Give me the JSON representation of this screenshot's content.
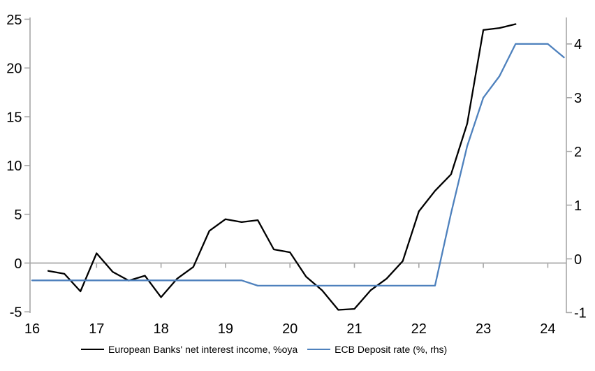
{
  "chart_data": {
    "type": "line",
    "title": "",
    "legend_position": "bottom",
    "x_axis": {
      "ticks": [
        16,
        17,
        18,
        19,
        20,
        21,
        22,
        23,
        24
      ],
      "range": [
        16,
        24.35
      ]
    },
    "left_axis": {
      "ticks": [
        -5,
        0,
        5,
        10,
        15,
        20,
        25
      ],
      "range": [
        -5.2,
        25.2
      ]
    },
    "right_axis": {
      "ticks": [
        -1,
        0,
        1,
        2,
        3,
        4
      ],
      "range": [
        -1.05,
        4.55
      ]
    },
    "colors": {
      "axis": "#a6a6a6",
      "text": "#000000",
      "background": "#ffffff"
    },
    "series": [
      {
        "key": "net-interest-income",
        "name": "European Banks' net interest income, %oya",
        "axis": "left",
        "color": "#000000",
        "points": [
          [
            16.25,
            -0.8
          ],
          [
            16.5,
            -1.1
          ],
          [
            16.75,
            -2.9
          ],
          [
            17.0,
            1.0
          ],
          [
            17.25,
            -0.9
          ],
          [
            17.5,
            -1.8
          ],
          [
            17.75,
            -1.3
          ],
          [
            18.0,
            -3.5
          ],
          [
            18.25,
            -1.6
          ],
          [
            18.5,
            -0.4
          ],
          [
            18.75,
            3.3
          ],
          [
            19.0,
            4.5
          ],
          [
            19.25,
            4.2
          ],
          [
            19.5,
            4.4
          ],
          [
            19.75,
            1.4
          ],
          [
            20.0,
            1.1
          ],
          [
            20.25,
            -1.4
          ],
          [
            20.5,
            -2.8
          ],
          [
            20.75,
            -4.8
          ],
          [
            21.0,
            -4.7
          ],
          [
            21.25,
            -2.8
          ],
          [
            21.5,
            -1.6
          ],
          [
            21.75,
            0.2
          ],
          [
            22.0,
            5.3
          ],
          [
            22.25,
            7.4
          ],
          [
            22.5,
            9.1
          ],
          [
            22.75,
            14.3
          ],
          [
            23.0,
            23.9
          ],
          [
            23.25,
            24.1
          ],
          [
            23.5,
            24.5
          ]
        ]
      },
      {
        "key": "ecb-deposit-rate",
        "name": "ECB Deposit rate (%, rhs)",
        "axis": "right",
        "color": "#4e81bd",
        "points": [
          [
            16.0,
            -0.4
          ],
          [
            16.5,
            -0.4
          ],
          [
            17.0,
            -0.4
          ],
          [
            17.5,
            -0.4
          ],
          [
            18.0,
            -0.4
          ],
          [
            18.5,
            -0.4
          ],
          [
            19.0,
            -0.4
          ],
          [
            19.25,
            -0.4
          ],
          [
            19.5,
            -0.5
          ],
          [
            20.0,
            -0.5
          ],
          [
            20.5,
            -0.5
          ],
          [
            21.0,
            -0.5
          ],
          [
            21.5,
            -0.5
          ],
          [
            22.0,
            -0.5
          ],
          [
            22.25,
            -0.5
          ],
          [
            22.5,
            0.85
          ],
          [
            22.75,
            2.1
          ],
          [
            23.0,
            3.0
          ],
          [
            23.25,
            3.4
          ],
          [
            23.5,
            4.0
          ],
          [
            23.75,
            4.0
          ],
          [
            24.0,
            4.0
          ],
          [
            24.25,
            3.75
          ]
        ]
      }
    ]
  }
}
